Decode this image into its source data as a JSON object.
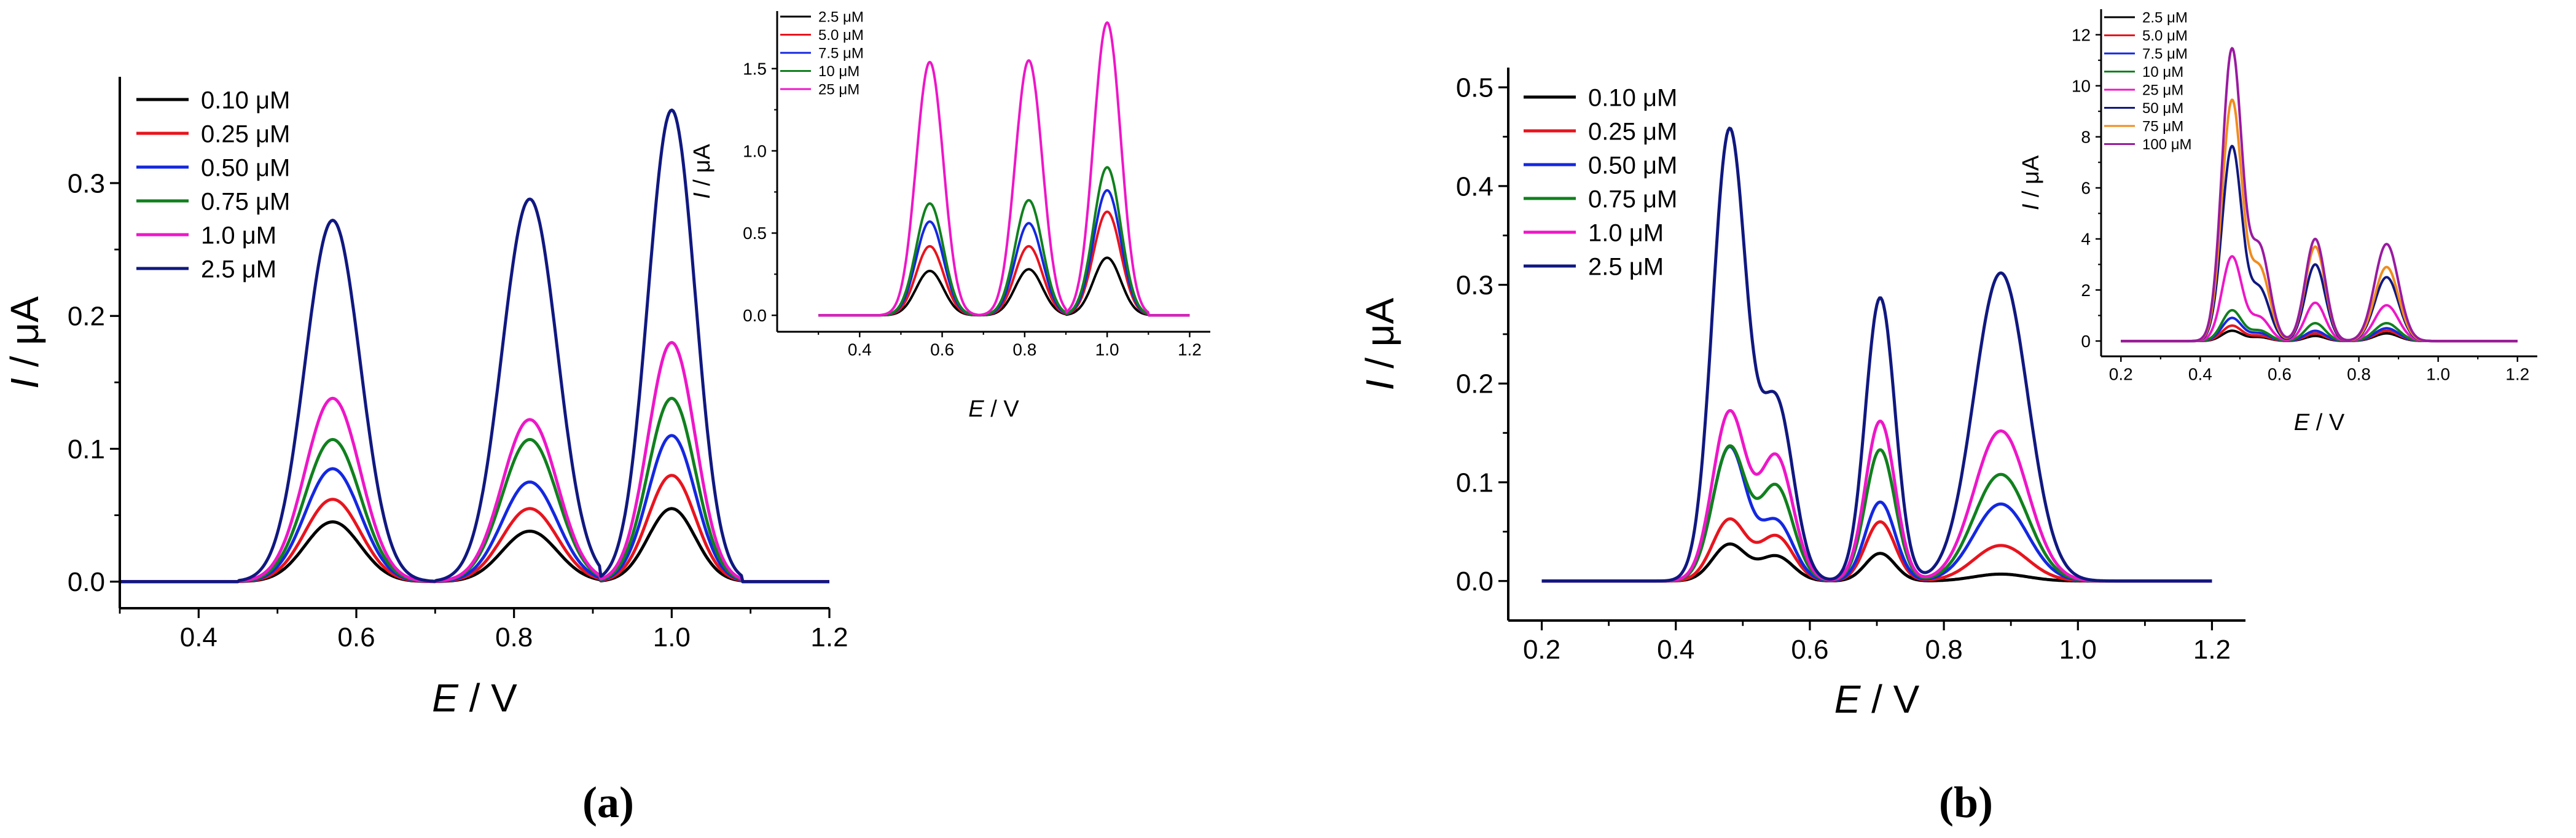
{
  "figure": {
    "panel_labels": [
      "(a)",
      "(b)"
    ]
  },
  "chart_data": [
    {
      "id": "a_main",
      "type": "line",
      "xlabel_var": "E",
      "xlabel_unit": " / V",
      "ylabel_var": "I",
      "ylabel_unit": " / μA",
      "xlim": [
        0.3,
        1.2
      ],
      "ylim": [
        -0.02,
        0.38
      ],
      "xticks": [
        0.4,
        0.6,
        0.8,
        1.0,
        1.2
      ],
      "xticklabels": [
        "0.4",
        "0.6",
        "0.8",
        "1.0",
        "1.2"
      ],
      "yticks": [
        0.0,
        0.1,
        0.2,
        0.3
      ],
      "yticklabels": [
        "0.0",
        "0.1",
        "0.2",
        "0.3"
      ],
      "peaks": [
        {
          "center": 0.57,
          "sigma": 0.035,
          "range": [
            0.45,
            0.7
          ]
        },
        {
          "center": 0.82,
          "sigma": 0.035,
          "range": [
            0.7,
            0.91
          ]
        },
        {
          "center": 1.0,
          "sigma": 0.03,
          "range": [
            0.91,
            1.09
          ]
        }
      ],
      "series": [
        {
          "name": "0.10 μM",
          "color": "#000000",
          "peak_heights": [
            0.045,
            0.038,
            0.055
          ]
        },
        {
          "name": "0.25 μM",
          "color": "#e8141e",
          "peak_heights": [
            0.062,
            0.055,
            0.08
          ]
        },
        {
          "name": "0.50 μM",
          "color": "#1428e0",
          "peak_heights": [
            0.085,
            0.075,
            0.11
          ]
        },
        {
          "name": "0.75 μM",
          "color": "#10801e",
          "peak_heights": [
            0.107,
            0.107,
            0.138
          ]
        },
        {
          "name": "1.0 μM",
          "color": "#ee16c8",
          "peak_heights": [
            0.138,
            0.122,
            0.18
          ]
        },
        {
          "name": "2.5 μM",
          "color": "#101880",
          "peak_heights": [
            0.272,
            0.288,
            0.355
          ]
        }
      ]
    },
    {
      "id": "a_inset",
      "type": "line",
      "xlabel_var": "E",
      "xlabel_unit": " / V",
      "ylabel_var": "I",
      "ylabel_unit": " / μA",
      "xlim": [
        0.2,
        1.25
      ],
      "ylim": [
        -0.1,
        1.85
      ],
      "xticks": [
        0.4,
        0.6,
        0.8,
        1.0,
        1.2
      ],
      "xticklabels": [
        "0.4",
        "0.6",
        "0.8",
        "1.0",
        "1.2"
      ],
      "yticks": [
        0.0,
        0.5,
        1.0,
        1.5
      ],
      "yticklabels": [
        "0.0",
        "0.5",
        "1.0",
        "1.5"
      ],
      "peaks": [
        {
          "center": 0.57,
          "sigma": 0.033,
          "range": [
            0.45,
            0.69
          ]
        },
        {
          "center": 0.81,
          "sigma": 0.033,
          "range": [
            0.69,
            0.9
          ]
        },
        {
          "center": 1.0,
          "sigma": 0.033,
          "range": [
            0.9,
            1.1
          ]
        }
      ],
      "series": [
        {
          "name": "2.5 μM",
          "color": "#000000",
          "peak_heights": [
            0.27,
            0.28,
            0.35
          ]
        },
        {
          "name": "5.0 μM",
          "color": "#e8141e",
          "peak_heights": [
            0.42,
            0.42,
            0.63
          ]
        },
        {
          "name": "7.5 μM",
          "color": "#1428e0",
          "peak_heights": [
            0.57,
            0.56,
            0.76
          ]
        },
        {
          "name": "10 μM",
          "color": "#10801e",
          "peak_heights": [
            0.68,
            0.7,
            0.9
          ]
        },
        {
          "name": "25 μM",
          "color": "#ee16c8",
          "peak_heights": [
            1.54,
            1.55,
            1.78
          ]
        }
      ]
    },
    {
      "id": "b_main",
      "type": "line",
      "xlabel_var": "E",
      "xlabel_unit": " / V",
      "ylabel_var": "I",
      "ylabel_unit": " / μA",
      "xlim": [
        0.15,
        1.25
      ],
      "ylim": [
        -0.04,
        0.52
      ],
      "xticks": [
        0.2,
        0.4,
        0.6,
        0.8,
        1.0,
        1.2
      ],
      "xticklabels": [
        "0.2",
        "0.4",
        "0.6",
        "0.8",
        "1.0",
        "1.2"
      ],
      "yticks": [
        0.0,
        0.1,
        0.2,
        0.3,
        0.4,
        0.5
      ],
      "yticklabels": [
        "0.0",
        "0.1",
        "0.2",
        "0.3",
        "0.4",
        "0.5"
      ],
      "peaks": [
        {
          "center": 0.48,
          "sigma": 0.025
        },
        {
          "center": 0.55,
          "sigma": 0.025
        },
        {
          "center": 0.705,
          "sigma": 0.022
        },
        {
          "center": 0.885,
          "sigma": 0.04
        }
      ],
      "series": [
        {
          "name": "0.10 μM",
          "color": "#000000",
          "peak_heights": [
            0.037,
            0.025,
            0.028,
            0.007
          ]
        },
        {
          "name": "0.25 μM",
          "color": "#e8141e",
          "peak_heights": [
            0.062,
            0.045,
            0.06,
            0.036
          ]
        },
        {
          "name": "0.50 μM",
          "color": "#1428e0",
          "peak_heights": [
            0.135,
            0.06,
            0.08,
            0.078
          ]
        },
        {
          "name": "0.75 μM",
          "color": "#10801e",
          "peak_heights": [
            0.135,
            0.095,
            0.133,
            0.108
          ]
        },
        {
          "name": "1.0 μM",
          "color": "#ee16c8",
          "peak_heights": [
            0.17,
            0.125,
            0.162,
            0.152
          ]
        },
        {
          "name": "2.5 μM",
          "color": "#101880",
          "peak_heights": [
            0.455,
            0.18,
            0.287,
            0.312
          ]
        }
      ]
    },
    {
      "id": "b_inset",
      "type": "line",
      "xlabel_var": "E",
      "xlabel_unit": " / V",
      "ylabel_var": "I",
      "ylabel_unit": " / μA",
      "xlim": [
        0.15,
        1.25
      ],
      "ylim": [
        -0.6,
        13.0
      ],
      "xticks": [
        0.2,
        0.4,
        0.6,
        0.8,
        1.0,
        1.2
      ],
      "xticklabels": [
        "0.2",
        "0.4",
        "0.6",
        "0.8",
        "1.0",
        "1.2"
      ],
      "yticks": [
        0,
        2,
        4,
        6,
        8,
        10,
        12
      ],
      "yticklabels": [
        "0",
        "2",
        "4",
        "6",
        "8",
        "10",
        "12"
      ],
      "peaks": [
        {
          "center": 0.48,
          "sigma": 0.025
        },
        {
          "center": 0.55,
          "sigma": 0.025
        },
        {
          "center": 0.69,
          "sigma": 0.025
        },
        {
          "center": 0.87,
          "sigma": 0.03
        }
      ],
      "series": [
        {
          "name": "2.5 μM",
          "color": "#000000",
          "peak_heights": [
            0.4,
            0.15,
            0.2,
            0.3
          ]
        },
        {
          "name": "5.0 μM",
          "color": "#e8141e",
          "peak_heights": [
            0.6,
            0.2,
            0.3,
            0.4
          ]
        },
        {
          "name": "7.5 μM",
          "color": "#1428e0",
          "peak_heights": [
            0.9,
            0.3,
            0.4,
            0.5
          ]
        },
        {
          "name": "10 μM",
          "color": "#10801e",
          "peak_heights": [
            1.2,
            0.4,
            0.7,
            0.7
          ]
        },
        {
          "name": "25 μM",
          "color": "#ee16c8",
          "peak_heights": [
            3.3,
            0.9,
            1.5,
            1.4
          ]
        },
        {
          "name": "50 μM",
          "color": "#101880",
          "peak_heights": [
            7.6,
            2.0,
            3.0,
            2.5
          ]
        },
        {
          "name": "75 μM",
          "color": "#f08c1e",
          "peak_heights": [
            9.4,
            2.8,
            3.7,
            2.9
          ]
        },
        {
          "name": "100 μM",
          "color": "#9a1aa0",
          "peak_heights": [
            11.4,
            3.6,
            4.0,
            3.8
          ]
        }
      ]
    }
  ]
}
